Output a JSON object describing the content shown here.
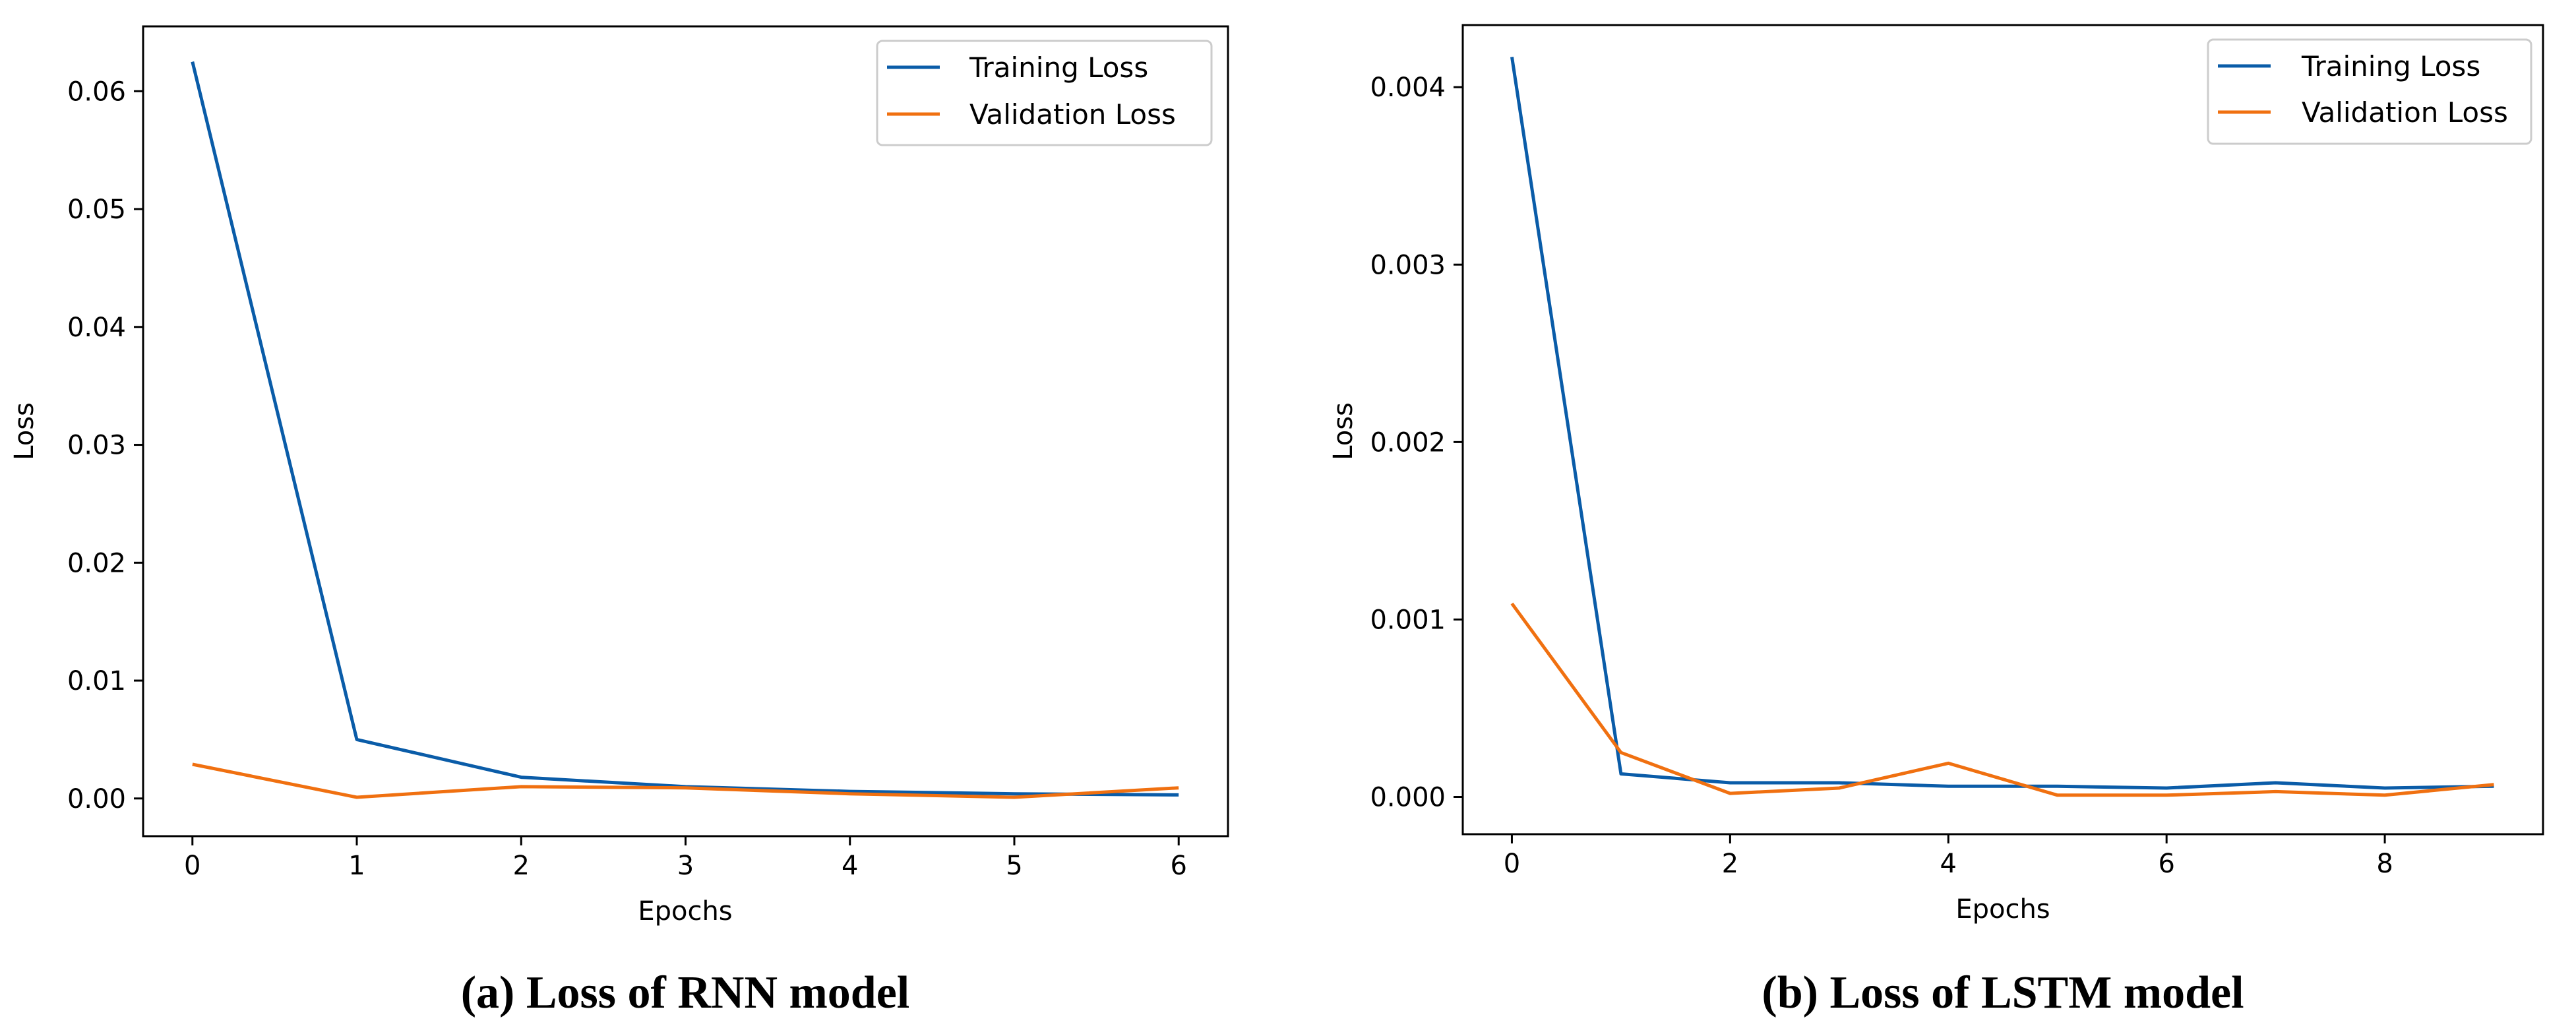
{
  "colors": {
    "training": "#0a5ca8",
    "validation": "#f07010",
    "axis": "#000000"
  },
  "chart_data": [
    {
      "type": "line",
      "caption": "(a) Loss of RNN model",
      "xlabel": "Epochs",
      "ylabel": "Loss",
      "xlim": [
        -0.3,
        6.3
      ],
      "ylim": [
        -0.0032,
        0.0655
      ],
      "xticks": [
        0,
        1,
        2,
        3,
        4,
        5,
        6
      ],
      "yticks": [
        0.0,
        0.01,
        0.02,
        0.03,
        0.04,
        0.05,
        0.06
      ],
      "ytick_labels": [
        "0.00",
        "0.01",
        "0.02",
        "0.03",
        "0.04",
        "0.05",
        "0.06"
      ],
      "legend_position": "top-right",
      "x": [
        0,
        1,
        2,
        3,
        4,
        5,
        6
      ],
      "series": [
        {
          "name": "Training Loss",
          "color_key": "training",
          "values": [
            0.0625,
            0.005,
            0.0018,
            0.001,
            0.0006,
            0.0004,
            0.0003
          ]
        },
        {
          "name": "Validation Loss",
          "color_key": "validation",
          "values": [
            0.0029,
            0.0001,
            0.001,
            0.0009,
            0.0004,
            0.0001,
            0.0009
          ]
        }
      ]
    },
    {
      "type": "line",
      "caption": "(b) Loss of LSTM model",
      "xlabel": "Epochs",
      "ylabel": "Loss",
      "xlim": [
        -0.45,
        9.45
      ],
      "ylim": [
        -0.00021,
        0.00435
      ],
      "xticks": [
        0,
        2,
        4,
        6,
        8
      ],
      "yticks": [
        0.0,
        0.001,
        0.002,
        0.003,
        0.004
      ],
      "ytick_labels": [
        "0.000",
        "0.001",
        "0.002",
        "0.003",
        "0.004"
      ],
      "legend_position": "top-right",
      "x": [
        0,
        1,
        2,
        3,
        4,
        5,
        6,
        7,
        8,
        9
      ],
      "series": [
        {
          "name": "Training Loss",
          "color_key": "training",
          "values": [
            0.00417,
            0.00013,
            8e-05,
            8e-05,
            6e-05,
            6e-05,
            5e-05,
            8e-05,
            5e-05,
            6e-05
          ]
        },
        {
          "name": "Validation Loss",
          "color_key": "validation",
          "values": [
            0.00109,
            0.00025,
            2e-05,
            5e-05,
            0.00019,
            1e-05,
            1e-05,
            3e-05,
            1e-05,
            7e-05
          ]
        }
      ]
    }
  ]
}
